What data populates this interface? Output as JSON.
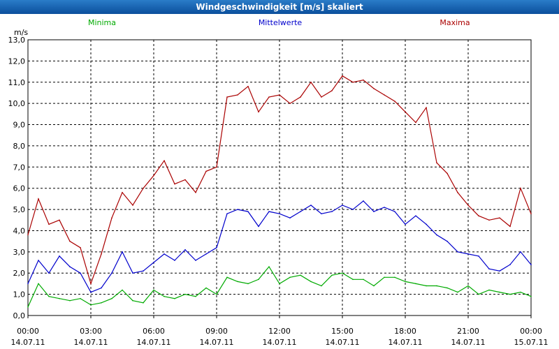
{
  "window": {
    "title": "Windgeschwindigkeit [m/s] skaliert"
  },
  "chart_data": {
    "type": "line",
    "title": "Windgeschwindigkeit [m/s] skaliert",
    "ylabel": "m/s",
    "xlabel": "",
    "ylim": [
      0,
      13
    ],
    "y_ticks": [
      "0,0",
      "1,0",
      "2,0",
      "3,0",
      "4,0",
      "5,0",
      "6,0",
      "7,0",
      "8,0",
      "9,0",
      "10,0",
      "11,0",
      "12,0",
      "13,0"
    ],
    "x_range_hours": [
      0,
      24
    ],
    "x_ticks": [
      {
        "time": "00:00",
        "date": "14.07.11"
      },
      {
        "time": "03:00",
        "date": "14.07.11"
      },
      {
        "time": "06:00",
        "date": "14.07.11"
      },
      {
        "time": "09:00",
        "date": "14.07.11"
      },
      {
        "time": "12:00",
        "date": "14.07.11"
      },
      {
        "time": "15:00",
        "date": "14.07.11"
      },
      {
        "time": "18:00",
        "date": "14.07.11"
      },
      {
        "time": "21:00",
        "date": "14.07.11"
      },
      {
        "time": "00:00",
        "date": "15.07.11"
      }
    ],
    "grid": true,
    "legend_position": "top",
    "x": [
      0,
      0.5,
      1,
      1.5,
      2,
      2.5,
      3,
      3.5,
      4,
      4.5,
      5,
      5.5,
      6,
      6.5,
      7,
      7.5,
      8,
      8.5,
      9,
      9.5,
      10,
      10.5,
      11,
      11.5,
      12,
      12.5,
      13,
      13.5,
      14,
      14.5,
      15,
      15.5,
      16,
      16.5,
      17,
      17.5,
      18,
      18.5,
      19,
      19.5,
      20,
      20.5,
      21,
      21.5,
      22,
      22.5,
      23,
      23.5,
      24
    ],
    "series": [
      {
        "name": "Minima",
        "color": "#00aa00",
        "values": [
          0.4,
          1.5,
          0.9,
          0.8,
          0.7,
          0.8,
          0.5,
          0.6,
          0.8,
          1.2,
          0.7,
          0.6,
          1.2,
          0.9,
          0.8,
          1.0,
          0.9,
          1.3,
          1.0,
          1.8,
          1.6,
          1.5,
          1.7,
          2.3,
          1.5,
          1.8,
          1.9,
          1.6,
          1.4,
          1.9,
          2.0,
          1.7,
          1.7,
          1.4,
          1.8,
          1.8,
          1.6,
          1.5,
          1.4,
          1.4,
          1.3,
          1.1,
          1.4,
          1.0,
          1.2,
          1.1,
          1.0,
          1.1,
          0.9
        ]
      },
      {
        "name": "Mittelwerte",
        "color": "#0000cc",
        "values": [
          1.5,
          2.6,
          2.0,
          2.8,
          2.3,
          2.0,
          1.1,
          1.3,
          2.0,
          3.0,
          2.0,
          2.1,
          2.5,
          2.9,
          2.6,
          3.1,
          2.6,
          2.9,
          3.2,
          4.8,
          5.0,
          4.9,
          4.2,
          4.9,
          4.8,
          4.6,
          4.9,
          5.2,
          4.8,
          4.9,
          5.2,
          5.0,
          5.4,
          4.9,
          5.1,
          4.9,
          4.3,
          4.7,
          4.3,
          3.8,
          3.5,
          3.0,
          2.9,
          2.8,
          2.2,
          2.1,
          2.4,
          3.0,
          2.4
        ]
      },
      {
        "name": "Maxima",
        "color": "#aa0000",
        "values": [
          3.8,
          5.5,
          4.3,
          4.5,
          3.5,
          3.2,
          1.5,
          2.9,
          4.6,
          5.8,
          5.2,
          6.0,
          6.6,
          7.3,
          6.2,
          6.4,
          5.8,
          6.8,
          7.0,
          10.3,
          10.4,
          10.8,
          9.6,
          10.3,
          10.4,
          10.0,
          10.3,
          11.0,
          10.3,
          10.6,
          11.3,
          11.0,
          11.1,
          10.7,
          10.4,
          10.1,
          9.6,
          9.1,
          9.8,
          7.2,
          6.7,
          5.8,
          5.2,
          4.7,
          4.5,
          4.6,
          4.2,
          6.0,
          4.8
        ]
      }
    ]
  }
}
